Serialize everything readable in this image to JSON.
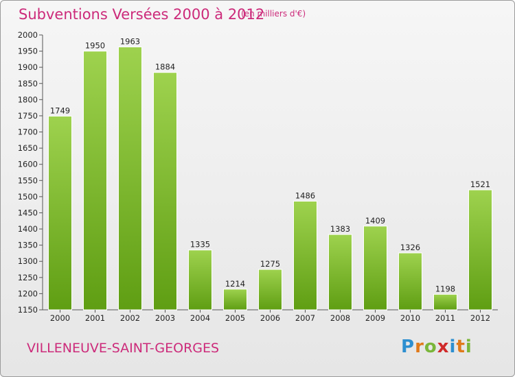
{
  "header": {
    "title": "Subventions Versées 2000 à 2012",
    "subtitle": "(en milliers d'€)"
  },
  "footer": {
    "place": "VILLENEUVE-SAINT-GEORGES",
    "logo": {
      "p": "P",
      "r": "r",
      "o": "o",
      "x": "x",
      "i": "i",
      "t": "t",
      "i2": "i"
    }
  },
  "colors": {
    "title": "#cc2a7a",
    "bar_light": "#9ed24e",
    "bar_dark": "#5f9e13"
  },
  "chart_data": {
    "type": "bar",
    "categories": [
      "2000",
      "2001",
      "2002",
      "2003",
      "2004",
      "2005",
      "2006",
      "2007",
      "2008",
      "2009",
      "2010",
      "2011",
      "2012"
    ],
    "values": [
      1749,
      1950,
      1963,
      1884,
      1335,
      1214,
      1275,
      1486,
      1383,
      1409,
      1326,
      1198,
      1521
    ],
    "title": "Subventions Versées 2000 à 2012",
    "subtitle": "(en milliers d'€)",
    "ylim": [
      1150,
      2000
    ],
    "yticks": [
      1150,
      1200,
      1250,
      1300,
      1350,
      1400,
      1450,
      1500,
      1550,
      1600,
      1650,
      1700,
      1750,
      1800,
      1850,
      1900,
      1950,
      2000
    ],
    "grid": false,
    "data_labels": true
  }
}
